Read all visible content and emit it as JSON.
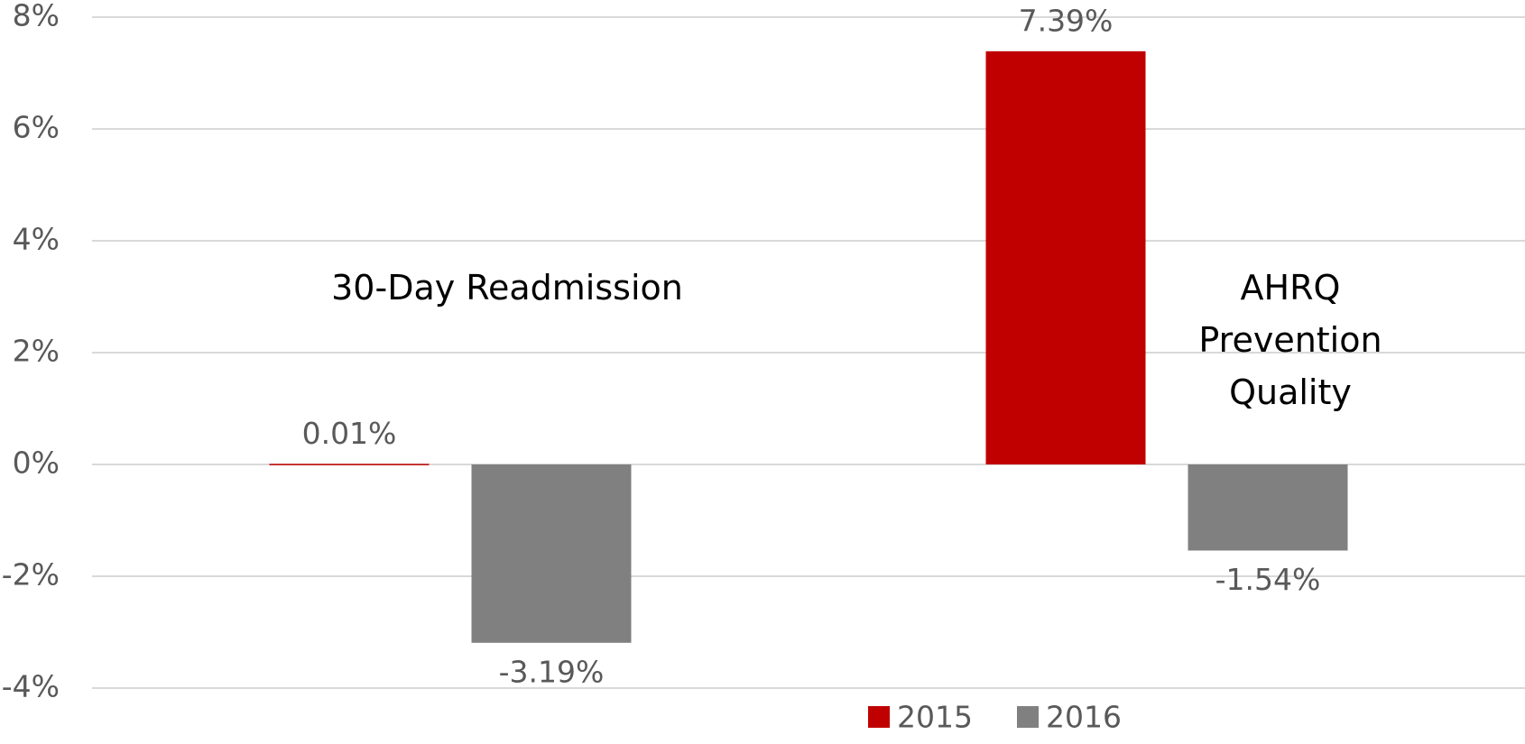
{
  "chart_data": {
    "type": "bar",
    "categories": [
      "30-Day Readmission",
      "AHRQ Prevention Quality"
    ],
    "series": [
      {
        "name": "2015",
        "color": "#c00000",
        "values": [
          0.01,
          7.39
        ],
        "value_labels": [
          "0.01%",
          "7.39%"
        ]
      },
      {
        "name": "2016",
        "color": "#808080",
        "values": [
          -3.19,
          -1.54
        ],
        "value_labels": [
          "-3.19%",
          "-1.54%"
        ]
      }
    ],
    "ylim": [
      -4,
      8
    ],
    "yticks": [
      {
        "value": -4,
        "label": "-4%"
      },
      {
        "value": -2,
        "label": "-2%"
      },
      {
        "value": 0,
        "label": "0%"
      },
      {
        "value": 2,
        "label": "2%"
      },
      {
        "value": 4,
        "label": "4%"
      },
      {
        "value": 6,
        "label": "6%"
      },
      {
        "value": 8,
        "label": "8%"
      }
    ],
    "grid": true,
    "legend": "bottom"
  }
}
